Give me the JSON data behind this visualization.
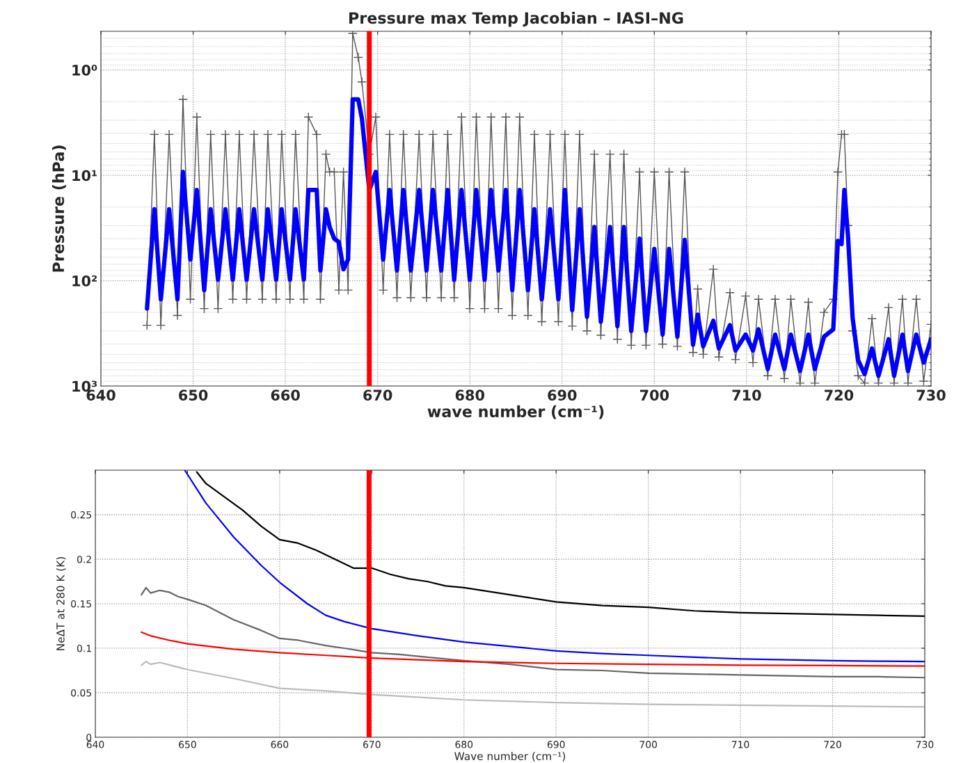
{
  "chart_data": [
    {
      "type": "line",
      "title": "Pressure max Temp Jacobian – IASI–NG",
      "xlabel": "wave number (cm⁻¹)",
      "ylabel": "Pressure (hPa)",
      "xlim": [
        640,
        730
      ],
      "xticks": [
        640,
        650,
        660,
        670,
        680,
        690,
        700,
        710,
        720,
        730
      ],
      "ylim": [
        1000,
        0.43
      ],
      "yticks": [
        {
          "value": 1,
          "label": "10⁰"
        },
        {
          "value": 10,
          "label": "10¹"
        },
        {
          "value": 100,
          "label": "10²"
        },
        {
          "value": 1000,
          "label": "10³"
        }
      ],
      "log": "y",
      "grid": true,
      "ref_lines": [
        {
          "axis": "x",
          "value": 669.1,
          "color": "#ff0000"
        }
      ],
      "series": [
        {
          "color": "#555555",
          "marker": "cross",
          "x": [
            645.0,
            645.8,
            646.5,
            647.4,
            648.3,
            648.9,
            649.7,
            650.4,
            651.2,
            651.9,
            652.7,
            653.5,
            654.3,
            655.0,
            655.8,
            656.6,
            657.5,
            658.1,
            659.0,
            659.6,
            660.5,
            661.1,
            662.0,
            662.5,
            663.4,
            663.8,
            664.4,
            664.8,
            665.3,
            665.8,
            666.3,
            666.8,
            667.3,
            667.9,
            668.3,
            669.1,
            669.8,
            670.6,
            671.3,
            672.1,
            672.8,
            673.6,
            674.5,
            675.3,
            676.0,
            676.9,
            677.6,
            678.3,
            679.1,
            680.0,
            680.7,
            681.6,
            682.3,
            683.1,
            683.9,
            684.6,
            685.4,
            686.3,
            687.0,
            687.8,
            688.7,
            689.6,
            690.3,
            691.1,
            691.9,
            692.7,
            693.5,
            694.2,
            695.2,
            696.0,
            696.7,
            697.5,
            698.4,
            699.1,
            700.0,
            700.9,
            701.6,
            702.5,
            703.3,
            704.2,
            704.7,
            705.3,
            706.4,
            707.0,
            708.2,
            708.8,
            709.9,
            710.7,
            711.3,
            712.3,
            713.1,
            714.1,
            714.8,
            715.8,
            716.7,
            717.4,
            718.4,
            719.4,
            719.9,
            720.3,
            720.6,
            721.0,
            721.5,
            722.1,
            722.8,
            723.6,
            724.3,
            725.4,
            726.0,
            726.9,
            727.5,
            728.4,
            729.2,
            730.0
          ],
          "values": [
            265,
            4.1,
            265,
            4.1,
            214,
            1.9,
            150,
            2.8,
            184,
            4.1,
            184,
            4.1,
            150,
            4.1,
            150,
            4.1,
            150,
            4.1,
            150,
            4.1,
            150,
            4.1,
            150,
            2.8,
            4.1,
            150,
            6.3,
            9.3,
            9.3,
            123,
            9.3,
            123,
            0.45,
            0.76,
            1.3,
            6.3,
            2.8,
            123,
            4.1,
            145,
            4.1,
            145,
            4.1,
            145,
            4.1,
            145,
            4.1,
            145,
            2.8,
            184,
            2.8,
            184,
            2.8,
            184,
            2.8,
            214,
            2.8,
            214,
            4.1,
            245,
            4.1,
            245,
            4.1,
            270,
            4.1,
            300,
            6.3,
            330,
            6.3,
            360,
            6.3,
            410,
            9.3,
            410,
            9.3,
            400,
            9.3,
            420,
            9.3,
            480,
            120,
            500,
            78,
            530,
            130,
            560,
            140,
            600,
            150,
            800,
            150,
            850,
            150,
            940,
            160,
            940,
            200,
            150,
            9.3,
            4.1,
            4.1,
            30,
            300,
            800,
            940,
            230,
            940,
            180,
            940,
            150,
            940,
            150,
            900,
            260
          ]
        },
        {
          "color": "#0000ff",
          "x": [
            645.0,
            645.8,
            646.5,
            647.4,
            648.3,
            648.9,
            649.7,
            650.4,
            651.2,
            651.9,
            652.7,
            653.5,
            654.3,
            655.0,
            655.8,
            656.6,
            657.5,
            658.1,
            659.0,
            659.6,
            660.5,
            661.1,
            662.0,
            662.5,
            663.4,
            663.8,
            664.4,
            664.8,
            665.3,
            665.8,
            666.3,
            666.8,
            667.3,
            667.9,
            668.3,
            669.1,
            669.8,
            670.6,
            671.3,
            672.1,
            672.8,
            673.6,
            674.5,
            675.3,
            676.0,
            676.9,
            677.6,
            678.3,
            679.1,
            680.0,
            680.7,
            681.6,
            682.3,
            683.1,
            683.9,
            684.6,
            685.4,
            686.3,
            687.0,
            687.8,
            688.7,
            689.6,
            690.3,
            691.1,
            691.9,
            692.7,
            693.5,
            694.2,
            695.2,
            696.0,
            696.7,
            697.5,
            698.4,
            699.1,
            700.0,
            700.9,
            701.6,
            702.5,
            703.3,
            704.2,
            704.7,
            705.3,
            706.4,
            707.0,
            708.2,
            708.8,
            709.9,
            710.7,
            711.3,
            712.3,
            713.1,
            714.1,
            714.8,
            715.8,
            716.7,
            717.4,
            718.4,
            719.4,
            719.9,
            720.3,
            720.6,
            721.0,
            721.5,
            722.1,
            722.8,
            723.6,
            724.3,
            725.4,
            726.0,
            726.9,
            727.5,
            728.4,
            729.2,
            730.0
          ],
          "values": [
            184,
            21,
            150,
            21,
            150,
            9.3,
            63,
            13.8,
            123,
            21,
            98,
            21,
            98,
            21,
            98,
            21,
            98,
            21,
            98,
            21,
            98,
            21,
            98,
            13.8,
            13.8,
            80,
            21,
            31,
            40,
            43,
            78,
            63,
            1.9,
            1.9,
            2.9,
            13.8,
            9.3,
            63,
            13.8,
            80,
            13.8,
            80,
            13.8,
            80,
            13.8,
            80,
            13.8,
            98,
            13.8,
            98,
            13.8,
            98,
            13.8,
            80,
            13.8,
            123,
            13.8,
            123,
            21,
            150,
            21,
            150,
            13.8,
            190,
            21,
            220,
            31,
            245,
            31,
            270,
            31,
            300,
            40,
            300,
            50,
            325,
            50,
            340,
            41,
            405,
            210,
            420,
            240,
            440,
            265,
            460,
            325,
            460,
            290,
            690,
            325,
            690,
            325,
            720,
            325,
            690,
            340,
            290,
            42,
            45,
            13.8,
            38,
            227,
            570,
            770,
            440,
            800,
            360,
            800,
            325,
            720,
            325,
            600,
            360
          ]
        }
      ]
    },
    {
      "type": "line",
      "xlabel": "Wave number (cm⁻¹)",
      "ylabel": "NeΔT at 280 K (K)",
      "xlim": [
        640,
        730
      ],
      "xticks": [
        640,
        650,
        660,
        670,
        680,
        690,
        700,
        710,
        720,
        730
      ],
      "ylim": [
        0,
        0.3
      ],
      "yticks": [
        0,
        0.05,
        0.1,
        0.15,
        0.2,
        0.25
      ],
      "grid": true,
      "ref_lines": [
        {
          "axis": "x",
          "value": 669.7,
          "color": "#ff0000"
        }
      ],
      "series": [
        {
          "color": "#000000",
          "x": [
            651,
            652,
            654,
            656,
            658,
            660,
            662,
            664,
            666,
            668,
            670,
            672,
            674,
            676,
            678,
            680,
            685,
            690,
            695,
            700,
            705,
            710,
            715,
            720,
            725,
            730
          ],
          "values": [
            0.298,
            0.285,
            0.27,
            0.255,
            0.237,
            0.222,
            0.218,
            0.21,
            0.2,
            0.19,
            0.19,
            0.183,
            0.178,
            0.175,
            0.17,
            0.168,
            0.16,
            0.152,
            0.148,
            0.146,
            0.142,
            0.14,
            0.139,
            0.138,
            0.137,
            0.136
          ]
        },
        {
          "color": "#0000ff",
          "x": [
            649.7,
            652,
            655,
            658,
            660,
            663,
            665,
            667,
            670,
            675,
            680,
            685,
            690,
            695,
            700,
            705,
            710,
            715,
            720,
            725,
            730
          ],
          "values": [
            0.3,
            0.263,
            0.225,
            0.193,
            0.174,
            0.15,
            0.137,
            0.13,
            0.122,
            0.114,
            0.107,
            0.102,
            0.097,
            0.094,
            0.092,
            0.09,
            0.088,
            0.087,
            0.086,
            0.0855,
            0.085
          ]
        },
        {
          "color": "#666666",
          "x": [
            645,
            645.5,
            646,
            647,
            648,
            649,
            650,
            652,
            655,
            658,
            660,
            662,
            665,
            667,
            670,
            673,
            676,
            680,
            685,
            690,
            695,
            700,
            705,
            710,
            715,
            720,
            725,
            730
          ],
          "values": [
            0.16,
            0.168,
            0.162,
            0.165,
            0.163,
            0.158,
            0.155,
            0.148,
            0.132,
            0.12,
            0.111,
            0.109,
            0.103,
            0.1,
            0.095,
            0.093,
            0.09,
            0.086,
            0.082,
            0.076,
            0.075,
            0.072,
            0.071,
            0.07,
            0.069,
            0.068,
            0.068,
            0.067
          ]
        },
        {
          "color": "#ff0000",
          "x": [
            645,
            646,
            648,
            650,
            655,
            660,
            665,
            670,
            675,
            680,
            690,
            700,
            710,
            720,
            730
          ],
          "values": [
            0.118,
            0.114,
            0.109,
            0.105,
            0.099,
            0.095,
            0.092,
            0.089,
            0.087,
            0.085,
            0.083,
            0.082,
            0.081,
            0.0805,
            0.08
          ]
        },
        {
          "color": "#bbbbbb",
          "x": [
            645,
            645.5,
            646,
            647,
            650,
            655,
            660,
            665,
            670,
            675,
            680,
            690,
            700,
            710,
            720,
            730
          ],
          "values": [
            0.081,
            0.085,
            0.082,
            0.084,
            0.076,
            0.066,
            0.055,
            0.052,
            0.048,
            0.045,
            0.042,
            0.039,
            0.037,
            0.036,
            0.035,
            0.034
          ]
        }
      ]
    }
  ]
}
